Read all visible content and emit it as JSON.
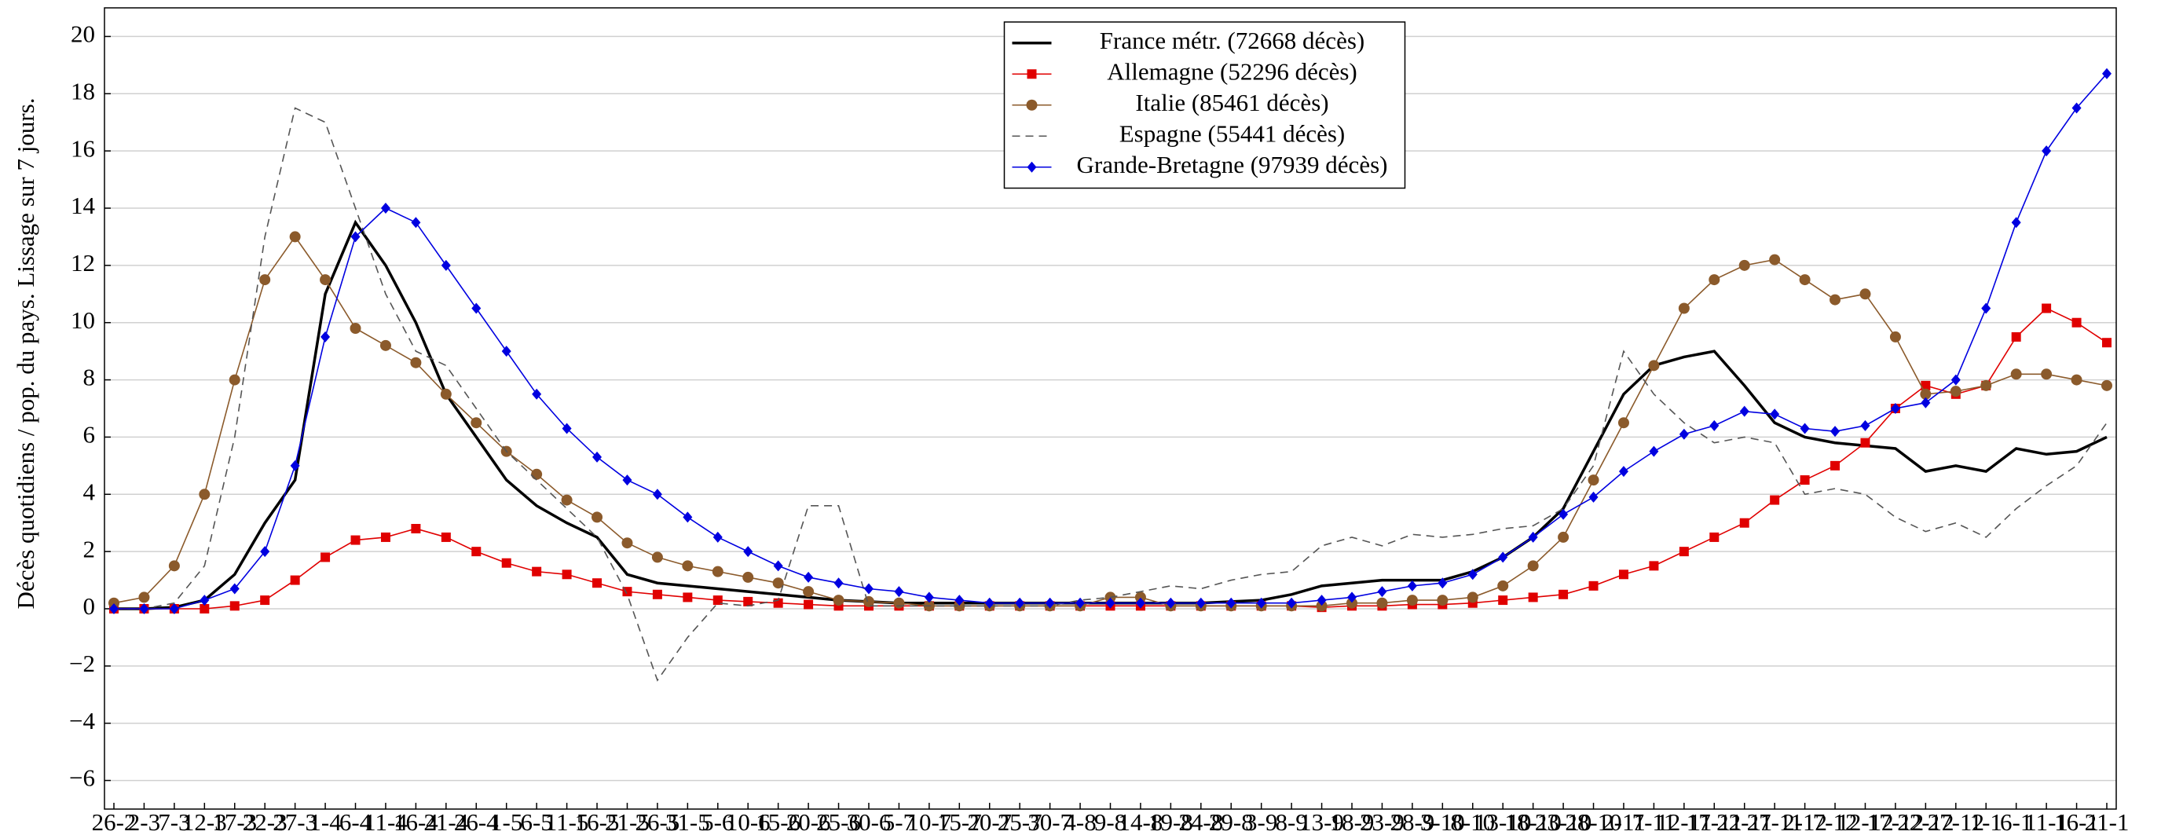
{
  "chart_data": {
    "type": "line",
    "y_label": "Décès quotidiens / pop. du pays. Lissage sur 7 jours.",
    "categories": [
      "26-2",
      "2-3",
      "7-3",
      "12-3",
      "17-3",
      "22-3",
      "27-3",
      "1-4",
      "6-4",
      "11-4",
      "16-4",
      "21-4",
      "26-4",
      "1-5",
      "6-5",
      "11-5",
      "16-5",
      "21-5",
      "26-5",
      "31-5",
      "5-6",
      "10-6",
      "15-6",
      "20-6",
      "25-6",
      "30-6",
      "5-7",
      "10-7",
      "15-7",
      "20-7",
      "25-7",
      "30-7",
      "4-8",
      "9-8",
      "14-8",
      "19-8",
      "24-8",
      "29-8",
      "3-9",
      "8-9",
      "13-9",
      "18-9",
      "23-9",
      "28-9",
      "3-10",
      "8-10",
      "13-10",
      "18-10",
      "23-10",
      "28-10",
      "2-11",
      "7-11",
      "12-11",
      "17-11",
      "22-11",
      "27-11",
      "2-12",
      "7-12",
      "12-12",
      "17-12",
      "22-12",
      "27-12",
      "1-1",
      "6-1",
      "11-1",
      "16-1",
      "21-1"
    ],
    "series": [
      {
        "name": "France métr. (72668 décès)",
        "color": "#000000",
        "marker": "none",
        "dash": false,
        "values": [
          0,
          0,
          0.05,
          0.3,
          1.2,
          3,
          4.5,
          11,
          13.5,
          12,
          10,
          7.5,
          6,
          4.5,
          3.6,
          3,
          2.5,
          1.2,
          0.9,
          0.8,
          0.7,
          0.6,
          0.5,
          0.4,
          0.3,
          0.25,
          0.2,
          0.2,
          0.2,
          0.2,
          0.2,
          0.2,
          0.2,
          0.2,
          0.2,
          0.2,
          0.2,
          0.25,
          0.3,
          0.5,
          0.8,
          0.9,
          1,
          1,
          1,
          1.3,
          1.8,
          2.5,
          3.5,
          5.5,
          7.5,
          8.5,
          8.8,
          9,
          7.8,
          6.5,
          6,
          5.8,
          5.7,
          5.6,
          4.8,
          5,
          4.8,
          5.6,
          5.4,
          5.5,
          6
        ]
      },
      {
        "name": "Allemagne (52296 décès)",
        "color": "#e00000",
        "marker": "square",
        "dash": false,
        "values": [
          0,
          0,
          0,
          0,
          0.1,
          0.3,
          1,
          1.8,
          2.4,
          2.5,
          2.8,
          2.5,
          2,
          1.6,
          1.3,
          1.2,
          0.9,
          0.6,
          0.5,
          0.4,
          0.3,
          0.25,
          0.2,
          0.15,
          0.1,
          0.1,
          0.1,
          0.1,
          0.1,
          0.1,
          0.1,
          0.1,
          0.1,
          0.1,
          0.1,
          0.1,
          0.1,
          0.1,
          0.1,
          0.1,
          0.05,
          0.1,
          0.1,
          0.15,
          0.15,
          0.2,
          0.3,
          0.4,
          0.5,
          0.8,
          1.2,
          1.5,
          2,
          2.5,
          3,
          3.8,
          4.5,
          5,
          5.8,
          7,
          7.8,
          7.5,
          7.8,
          9.5,
          10.5,
          10,
          9.3
        ]
      },
      {
        "name": "Italie (85461 décès)",
        "color": "#8b5a2b",
        "marker": "circle",
        "dash": false,
        "values": [
          0.2,
          0.4,
          1.5,
          4,
          8,
          11.5,
          13,
          11.5,
          9.8,
          9.2,
          8.6,
          7.5,
          6.5,
          5.5,
          4.7,
          3.8,
          3.2,
          2.3,
          1.8,
          1.5,
          1.3,
          1.1,
          0.9,
          0.6,
          0.3,
          0.25,
          0.2,
          0.1,
          0.1,
          0.1,
          0.1,
          0.1,
          0.1,
          0.4,
          0.4,
          0.1,
          0.1,
          0.1,
          0.1,
          0.1,
          0.1,
          0.2,
          0.2,
          0.3,
          0.3,
          0.4,
          0.8,
          1.5,
          2.5,
          4.5,
          6.5,
          8.5,
          10.5,
          11.5,
          12,
          12.2,
          11.5,
          10.8,
          11,
          9.5,
          7.5,
          7.6,
          7.8,
          8.2,
          8.2,
          8,
          7.8
        ]
      },
      {
        "name": "Espagne (55441 décès)",
        "color": "#555555",
        "marker": "none",
        "dash": true,
        "values": [
          0,
          0,
          0.2,
          1.5,
          6,
          13,
          17.5,
          17,
          14,
          11,
          9,
          8.5,
          7,
          5.5,
          4.5,
          3.5,
          2.5,
          0.5,
          -2.5,
          -1,
          0.2,
          0.1,
          0.3,
          3.6,
          3.6,
          0.1,
          0.1,
          0.1,
          0.1,
          0.1,
          0.1,
          0.1,
          0.3,
          0.4,
          0.6,
          0.8,
          0.7,
          1,
          1.2,
          1.3,
          2.2,
          2.5,
          2.2,
          2.6,
          2.5,
          2.6,
          2.8,
          2.9,
          3.5,
          5,
          9,
          7.5,
          6.5,
          5.8,
          6,
          5.8,
          4,
          4.2,
          4,
          3.2,
          2.7,
          3,
          2.5,
          3.5,
          4.3,
          5,
          6.5
        ]
      },
      {
        "name": "Grande-Bretagne (97939 décès)",
        "color": "#0000e0",
        "marker": "diamond",
        "dash": false,
        "values": [
          0,
          0,
          0,
          0.3,
          0.7,
          2,
          5,
          9.5,
          13,
          14,
          13.5,
          12,
          10.5,
          9,
          7.5,
          6.3,
          5.3,
          4.5,
          4,
          3.2,
          2.5,
          2,
          1.5,
          1.1,
          0.9,
          0.7,
          0.6,
          0.4,
          0.3,
          0.2,
          0.2,
          0.2,
          0.2,
          0.2,
          0.2,
          0.2,
          0.2,
          0.2,
          0.2,
          0.2,
          0.3,
          0.4,
          0.6,
          0.8,
          0.9,
          1.2,
          1.8,
          2.5,
          3.3,
          3.9,
          4.8,
          5.5,
          6.1,
          6.4,
          6.9,
          6.8,
          6.3,
          6.2,
          6.4,
          7,
          7.2,
          8,
          10.5,
          13.5,
          16,
          17.5,
          18.7
        ]
      }
    ],
    "ylim": [
      -7,
      21
    ],
    "yticks": [
      {
        "value": -6,
        "label": "−6"
      },
      {
        "value": -4,
        "label": "−4"
      },
      {
        "value": -2,
        "label": "−2"
      },
      0,
      2,
      4,
      6,
      8,
      10,
      12,
      14,
      16,
      18,
      20
    ],
    "grid": true,
    "legend": "top-center"
  }
}
